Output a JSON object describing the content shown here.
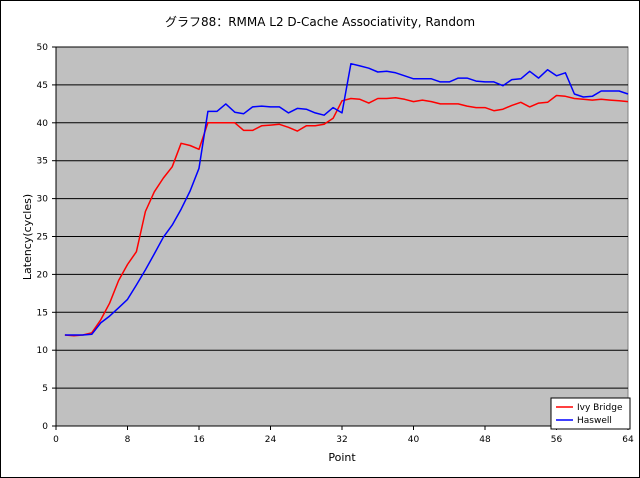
{
  "chart_data": {
    "type": "line",
    "title": "グラフ88：RMMA L2 D-Cache Associativity, Random",
    "xlabel": "Point",
    "ylabel": "Latency(cycles)",
    "xlim": [
      0,
      64
    ],
    "ylim": [
      0,
      50
    ],
    "x_ticks": [
      "0",
      "8",
      "16",
      "24",
      "32",
      "40",
      "48",
      "56",
      "64"
    ],
    "y_ticks": [
      "0",
      "5",
      "10",
      "15",
      "20",
      "25",
      "30",
      "35",
      "40",
      "45",
      "50"
    ],
    "grid": "horizontal",
    "legend_position": "bottom-right",
    "plot_background": "#c0c0c0",
    "x": [
      1,
      2,
      3,
      4,
      5,
      6,
      7,
      8,
      9,
      10,
      11,
      12,
      13,
      14,
      15,
      16,
      17,
      18,
      19,
      20,
      21,
      22,
      23,
      24,
      25,
      26,
      27,
      28,
      29,
      30,
      31,
      32,
      33,
      34,
      35,
      36,
      37,
      38,
      39,
      40,
      41,
      42,
      43,
      44,
      45,
      46,
      47,
      48,
      49,
      50,
      51,
      52,
      53,
      54,
      55,
      56,
      57,
      58,
      59,
      60,
      61,
      62,
      63,
      64
    ],
    "series": [
      {
        "name": "Ivy Bridge",
        "color": "#ff0000",
        "values": [
          12.0,
          11.9,
          12.0,
          12.3,
          14.0,
          16.2,
          19.2,
          21.3,
          23.0,
          28.3,
          30.9,
          32.7,
          34.2,
          37.3,
          37.0,
          36.5,
          40.0,
          40.0,
          40.0,
          40.0,
          39.0,
          39.0,
          39.6,
          39.7,
          39.8,
          39.4,
          38.9,
          39.6,
          39.6,
          39.8,
          40.6,
          42.9,
          43.2,
          43.1,
          42.6,
          43.2,
          43.2,
          43.3,
          43.1,
          42.8,
          43.0,
          42.8,
          42.5,
          42.5,
          42.5,
          42.2,
          42.0,
          42.0,
          41.6,
          41.8,
          42.3,
          42.7,
          42.1,
          42.6,
          42.7,
          43.6,
          43.5,
          43.2,
          43.1,
          43.0,
          43.1,
          43.0,
          42.9,
          42.8
        ]
      },
      {
        "name": "Haswell",
        "color": "#0000ff",
        "values": [
          12.0,
          12.0,
          12.0,
          12.1,
          13.6,
          14.5,
          15.6,
          16.7,
          18.6,
          20.6,
          22.7,
          24.9,
          26.5,
          28.6,
          31.0,
          34.0,
          41.5,
          41.5,
          42.5,
          41.4,
          41.2,
          42.1,
          42.2,
          42.1,
          42.1,
          41.3,
          41.9,
          41.8,
          41.3,
          41.0,
          42.0,
          41.3,
          47.8,
          47.5,
          47.2,
          46.7,
          46.8,
          46.6,
          46.2,
          45.8,
          45.8,
          45.8,
          45.4,
          45.4,
          45.9,
          45.9,
          45.5,
          45.4,
          45.4,
          44.9,
          45.7,
          45.8,
          46.8,
          45.9,
          47.0,
          46.2,
          46.6,
          43.8,
          43.4,
          43.5,
          44.2,
          44.2,
          44.2,
          43.8
        ]
      }
    ]
  }
}
